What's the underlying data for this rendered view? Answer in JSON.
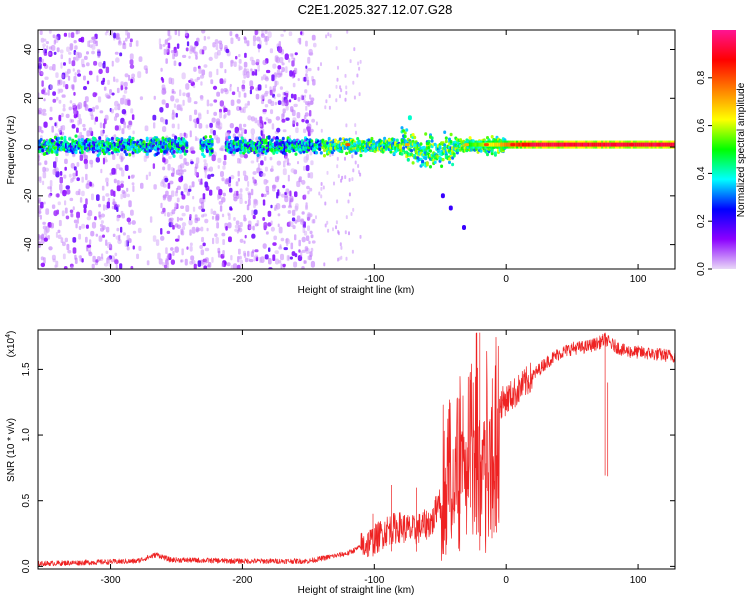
{
  "title": "C2E1.2025.327.12.07.G28",
  "chart_data": [
    {
      "type": "heatmap",
      "name": "spectrogram",
      "xlabel": "Height of straight line (km)",
      "ylabel": "Frequency (Hz)",
      "xlim": [
        -355,
        128
      ],
      "ylim": [
        -50,
        48
      ],
      "x_ticks": [
        -300,
        -200,
        -100,
        0,
        100
      ],
      "x_tick_labels": [
        "-300",
        "-200",
        "-100",
        "0",
        "100"
      ],
      "y_ticks": [
        -40,
        -20,
        0,
        20,
        40
      ],
      "y_tick_labels": [
        "-40",
        "-20",
        "0",
        "20",
        "40"
      ],
      "colorbar": {
        "label": "Normalized spectral amplitude",
        "range": [
          0.0,
          1.0
        ],
        "ticks": [
          0.0,
          0.2,
          0.4,
          0.6,
          0.8
        ],
        "tick_labels": [
          "0.0",
          "0.2",
          "0.4",
          "0.6",
          "0.8"
        ],
        "colors": [
          "#e9d8f7",
          "#8b00ff",
          "#0000ff",
          "#00ffff",
          "#00ff00",
          "#ffff00",
          "#ff8000",
          "#ff0000",
          "#ff1493"
        ]
      },
      "band": {
        "center_frequency_hz": 1,
        "start_km": -355,
        "strong_from_km": 0,
        "peak_value": 0.95
      },
      "noise_region_km": [
        -355,
        -145
      ],
      "feature_points": [
        {
          "x": -73,
          "y": 12,
          "value": 0.4
        },
        {
          "x": -48,
          "y": -20,
          "value": 0.2
        },
        {
          "x": -42,
          "y": -25,
          "value": 0.2
        },
        {
          "x": -32,
          "y": -33,
          "value": 0.2
        }
      ]
    },
    {
      "type": "line",
      "name": "snr",
      "xlabel": "Height of straight line (km)",
      "ylabel": "SNR (10 * v/v)",
      "multiplier_label": "(x10",
      "multiplier_exp": "4",
      "xlim": [
        -355,
        128
      ],
      "ylim": [
        -0.02,
        1.8
      ],
      "x_ticks": [
        -300,
        -200,
        -100,
        0,
        100
      ],
      "x_tick_labels": [
        "-300",
        "-200",
        "-100",
        "0",
        "100"
      ],
      "y_ticks": [
        0.0,
        0.5,
        1.0,
        1.5
      ],
      "y_tick_labels": [
        "0.0",
        "0.5",
        "1.0",
        "1.5"
      ],
      "color": "#ee2222",
      "envelope": {
        "x": [
          -355,
          -280,
          -265,
          -255,
          -200,
          -150,
          -120,
          -100,
          -90,
          -80,
          -70,
          -55,
          -45,
          -40,
          -35,
          -30,
          -25,
          -20,
          -15,
          -10,
          0,
          10,
          20,
          30,
          40,
          50,
          60,
          70,
          75,
          80,
          90,
          100,
          110,
          128
        ],
        "y": [
          0.02,
          0.04,
          0.09,
          0.05,
          0.04,
          0.04,
          0.1,
          0.2,
          0.28,
          0.3,
          0.27,
          0.35,
          0.8,
          0.9,
          1.0,
          1.08,
          1.15,
          1.2,
          1.17,
          1.2,
          1.27,
          1.35,
          1.45,
          1.55,
          1.62,
          1.66,
          1.67,
          1.7,
          1.73,
          1.69,
          1.64,
          1.63,
          1.62,
          1.6
        ]
      },
      "spikes": [
        {
          "x": -101,
          "y": 0.4
        },
        {
          "x": -87,
          "y": 0.62
        },
        {
          "x": -68,
          "y": 0.6
        },
        {
          "x": -47,
          "y": 0.95
        },
        {
          "x": -35,
          "y": 1.35
        },
        {
          "x": -27,
          "y": 1.42
        },
        {
          "x": -20,
          "y": 1.78
        },
        {
          "x": 75,
          "y": 1.78
        },
        {
          "x": 77,
          "y": 1.4
        }
      ]
    }
  ]
}
